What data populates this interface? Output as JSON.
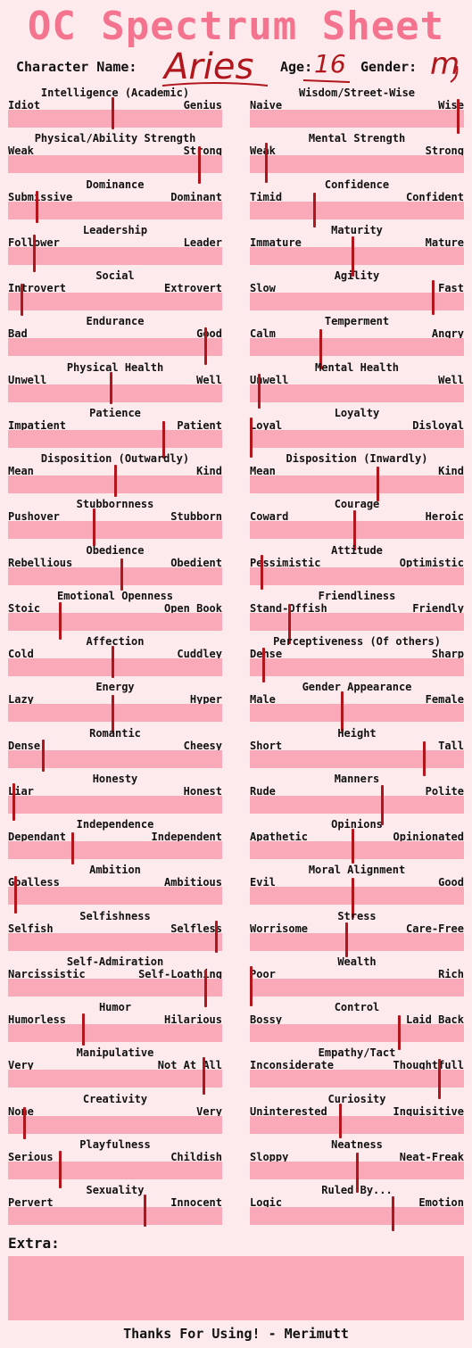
{
  "title": "OC Spectrum Sheet",
  "header": {
    "name_label": "Character Name:",
    "name_value": "Aries",
    "age_label": "Age:",
    "age_value": "16",
    "gender_label": "Gender:",
    "gender_value": "m"
  },
  "colors": {
    "title": "#f4748f",
    "bar": "#f9a9b8",
    "background": "#fdeaec",
    "marker": "#b0161c"
  },
  "traits": [
    {
      "title": "Intelligence (Academic)",
      "left": "Idiot",
      "right": "Genius",
      "value": 0.49
    },
    {
      "title": "Wisdom/Street-Wise",
      "left": "Naive",
      "right": "Wise",
      "value": 0.98
    },
    {
      "title": "Physical/Ability Strength",
      "left": "Weak",
      "right": "Strong",
      "value": 0.9
    },
    {
      "title": "Mental Strength",
      "left": "Weak",
      "right": "Strong",
      "value": 0.07
    },
    {
      "title": "Dominance",
      "left": "Submissive",
      "right": "Dominant",
      "value": 0.13
    },
    {
      "title": "Confidence",
      "left": "Timid",
      "right": "Confident",
      "value": 0.3
    },
    {
      "title": "Leadership",
      "left": "Follower",
      "right": "Leader",
      "value": 0.12
    },
    {
      "title": "Maturity",
      "left": "Immature",
      "right": "Mature",
      "value": 0.48
    },
    {
      "title": "Social",
      "left": "Introvert",
      "right": "Extrovert",
      "value": 0.06
    },
    {
      "title": "Agility",
      "left": "Slow",
      "right": "Fast",
      "value": 0.86
    },
    {
      "title": "Endurance",
      "left": "Bad",
      "right": "Good",
      "value": 0.93
    },
    {
      "title": "Temperment",
      "left": "Calm",
      "right": "Angry",
      "value": 0.33
    },
    {
      "title": "Physical Health",
      "left": "Unwell",
      "right": "Well",
      "value": 0.48
    },
    {
      "title": "Mental Health",
      "left": "Unwell",
      "right": "Well",
      "value": 0.04
    },
    {
      "title": "Patience",
      "left": "Impatient",
      "right": "Patient",
      "value": 0.73
    },
    {
      "title": "Loyalty",
      "left": "Loyal",
      "right": "Disloyal",
      "value": 0.0
    },
    {
      "title": "Disposition (Outwardly)",
      "left": "Mean",
      "right": "Kind",
      "value": 0.5
    },
    {
      "title": "Disposition (Inwardly)",
      "left": "Mean",
      "right": "Kind",
      "value": 0.6
    },
    {
      "title": "Stubbornness",
      "left": "Pushover",
      "right": "Stubborn",
      "value": 0.4
    },
    {
      "title": "Courage",
      "left": "Coward",
      "right": "Heroic",
      "value": 0.49
    },
    {
      "title": "Obedience",
      "left": "Rebellious",
      "right": "Obedient",
      "value": 0.53
    },
    {
      "title": "Attitude",
      "left": "Pessimistic",
      "right": "Optimistic",
      "value": 0.05
    },
    {
      "title": "Emotional Openness",
      "left": "Stoic",
      "right": "Open Book",
      "value": 0.24
    },
    {
      "title": "Friendliness",
      "left": "Stand-Offish",
      "right": "Friendly",
      "value": 0.18
    },
    {
      "title": "Affection",
      "left": "Cold",
      "right": "Cuddley",
      "value": 0.49
    },
    {
      "title": "Perceptiveness (Of others)",
      "left": "Dense",
      "right": "Sharp",
      "value": 0.06
    },
    {
      "title": "Energy",
      "left": "Lazy",
      "right": "Hyper",
      "value": 0.49
    },
    {
      "title": "Gender Appearance",
      "left": "Male",
      "right": "Female",
      "value": 0.43
    },
    {
      "title": "Romantic",
      "left": "Dense",
      "right": "Cheesy",
      "value": 0.16
    },
    {
      "title": "Height",
      "left": "Short",
      "right": "Tall",
      "value": 0.82
    },
    {
      "title": "Honesty",
      "left": "Liar",
      "right": "Honest",
      "value": 0.02
    },
    {
      "title": "Manners",
      "left": "Rude",
      "right": "Polite",
      "value": 0.62
    },
    {
      "title": "Independence",
      "left": "Dependant",
      "right": "Independent",
      "value": 0.3
    },
    {
      "title": "Opinions",
      "left": "Apathetic",
      "right": "Opinionated",
      "value": 0.48
    },
    {
      "title": "Ambition",
      "left": "Goalless",
      "right": "Ambitious",
      "value": 0.03
    },
    {
      "title": "Moral Alignment",
      "left": "Evil",
      "right": "Good",
      "value": 0.48
    },
    {
      "title": "Selfishness",
      "left": "Selfish",
      "right": "Selfless",
      "value": 0.98
    },
    {
      "title": "Stress",
      "left": "Worrisome",
      "right": "Care-Free",
      "value": 0.45
    },
    {
      "title": "Self-Admiration",
      "left": "Narcissistic",
      "right": "Self-Loathing",
      "value": 0.93
    },
    {
      "title": "Wealth",
      "left": "Poor",
      "right": "Rich",
      "value": 0.0
    },
    {
      "title": "Humor",
      "left": "Humorless",
      "right": "Hilarious",
      "value": 0.35
    },
    {
      "title": "Control",
      "left": "Bossy",
      "right": "Laid Back",
      "value": 0.7
    },
    {
      "title": "Manipulative",
      "left": "Very",
      "right": "Not At All",
      "value": 0.92
    },
    {
      "title": "Empathy/Tact",
      "left": "Inconsiderate",
      "right": "Thoughtfull",
      "value": 0.89
    },
    {
      "title": "Creativity",
      "left": "None",
      "right": "Very",
      "value": 0.07
    },
    {
      "title": "Curiosity",
      "left": "Uninterested",
      "right": "Inquisitive",
      "value": 0.42
    },
    {
      "title": "Playfulness",
      "left": "Serious",
      "right": "Childish",
      "value": 0.24
    },
    {
      "title": "Neatness",
      "left": "Sloppy",
      "right": "Neat-Freak",
      "value": 0.5
    },
    {
      "title": "Sexuality",
      "left": "Pervert",
      "right": "Innocent",
      "value": 0.64
    },
    {
      "title": "Ruled By...",
      "left": "Logic",
      "right": "Emotion",
      "value": 0.67
    }
  ],
  "extra_label": "Extra:",
  "footer": "Thanks For Using! - Merimutt"
}
